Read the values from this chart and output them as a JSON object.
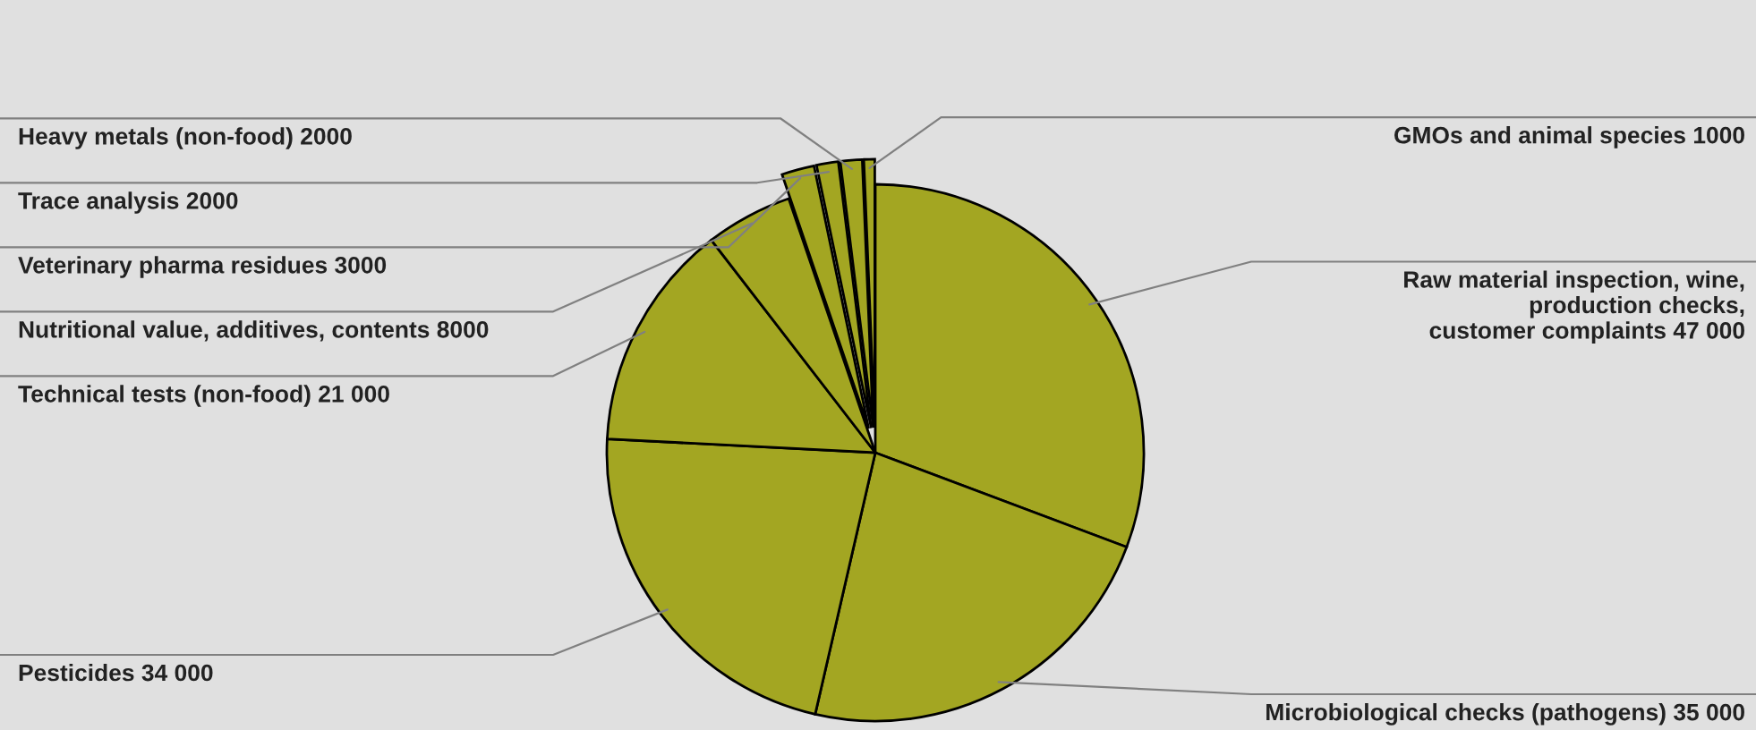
{
  "chart_data": {
    "type": "pie",
    "categories": [
      "Raw material inspection, wine,\nproduction checks,\ncustomer complaints",
      "Microbiological checks (pathogens)",
      "Pesticides",
      "Technical tests (non-food)",
      "Nutritional value, additives, contents",
      "Veterinary pharma residues",
      "Trace analysis",
      "Heavy metals (non-food)",
      "GMOs and animal species"
    ],
    "values": [
      47000,
      35000,
      34000,
      21000,
      8000,
      3000,
      2000,
      2000,
      1000
    ],
    "value_labels": [
      "47 000",
      "35 000",
      "34 000",
      "21 000",
      "8000",
      "3000",
      "2000",
      "2000",
      "1000"
    ],
    "colors": [
      "#a3a622",
      "#a3a622",
      "#a3a622",
      "#a3a622",
      "#a3a622",
      "#a3a622",
      "#a3a622",
      "#a3a622",
      "#a3a622"
    ],
    "legend": false
  }
}
